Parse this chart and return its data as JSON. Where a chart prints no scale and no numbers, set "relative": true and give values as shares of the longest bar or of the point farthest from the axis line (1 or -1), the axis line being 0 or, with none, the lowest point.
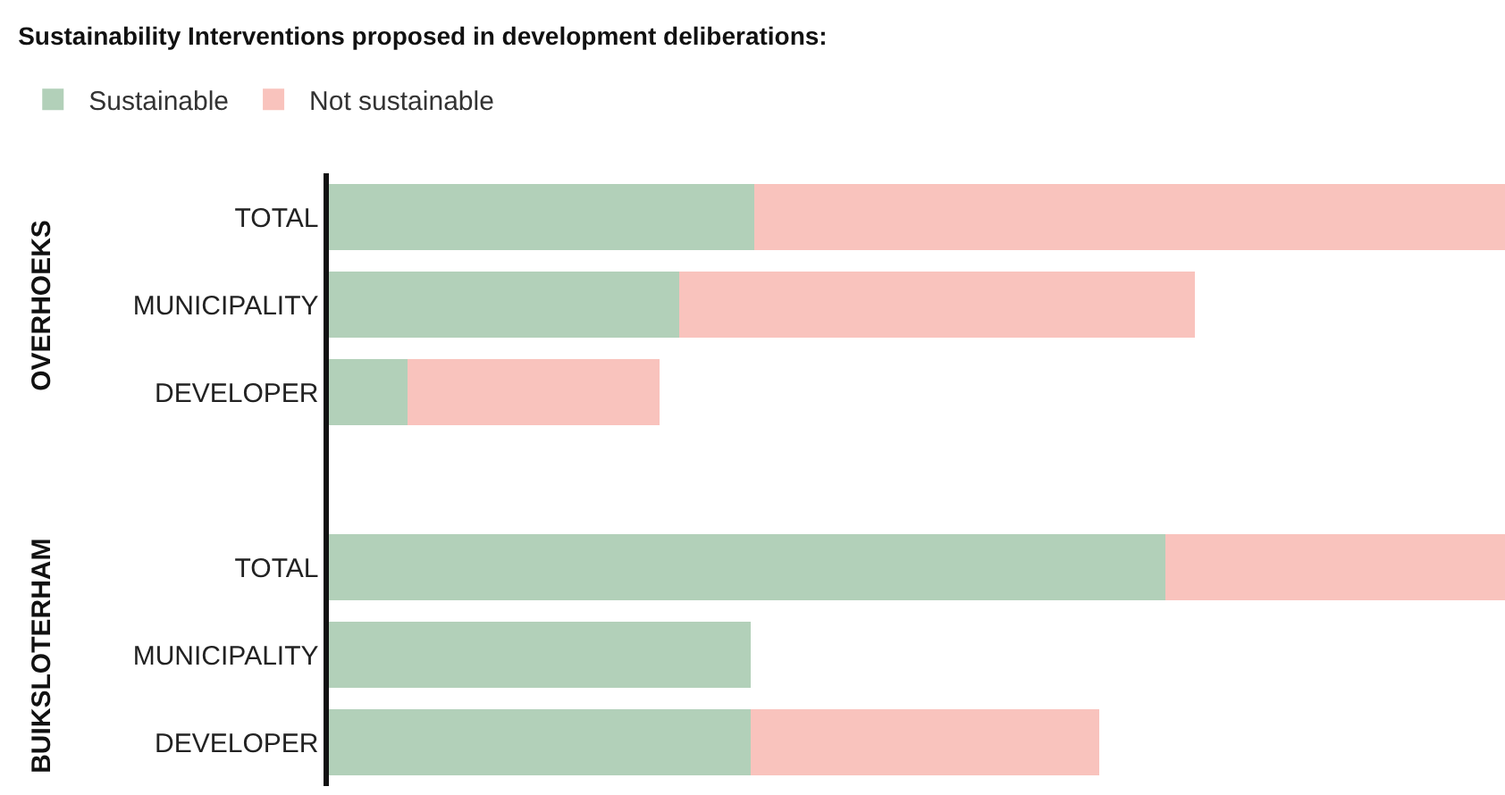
{
  "chart_data": {
    "type": "bar",
    "orientation": "horizontal",
    "stacked": true,
    "relative": true,
    "title": "Sustainability Interventions proposed in development deliberations:",
    "categories": [
      "TOTAL",
      "MUNICIPALITY",
      "DEVELOPER",
      null,
      "TOTAL",
      "MUNICIPALITY",
      "DEVELOPER"
    ],
    "series": [
      {
        "name": "Sustainable",
        "color": "#b2d0b9",
        "values": [
          0.362,
          0.298,
          0.067,
          null,
          0.711,
          0.359,
          0.359
        ]
      },
      {
        "name": "Not sustainable",
        "color": "#f9c3bd",
        "values": [
          0.638,
          0.438,
          0.214,
          null,
          0.289,
          0,
          0.296
        ]
      }
    ],
    "annotations": [
      "OVERHOEKS",
      "BUIKSLOTERHAM"
    ],
    "legend": "top left"
  }
}
